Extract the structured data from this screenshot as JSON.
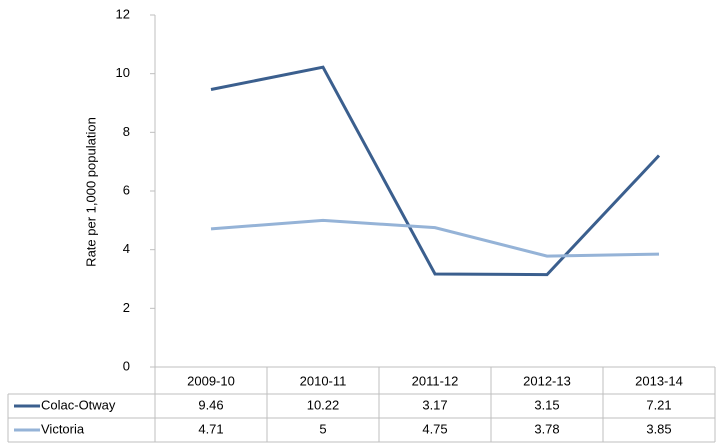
{
  "chart_data": {
    "type": "line",
    "y_label": "Rate per 1,000 population",
    "categories": [
      "2009-10",
      "2010-11",
      "2011-12",
      "2012-13",
      "2013-14"
    ],
    "series": [
      {
        "name": "Colac-Otway",
        "color": "#3b5f8e",
        "values": [
          9.46,
          10.22,
          3.17,
          3.15,
          7.21
        ]
      },
      {
        "name": "Victoria",
        "color": "#95b3d7",
        "values": [
          4.71,
          5,
          4.75,
          3.78,
          3.85
        ]
      }
    ],
    "ylim": [
      0,
      12
    ],
    "yticks": [
      0,
      2,
      4,
      6,
      8,
      10,
      12
    ]
  }
}
